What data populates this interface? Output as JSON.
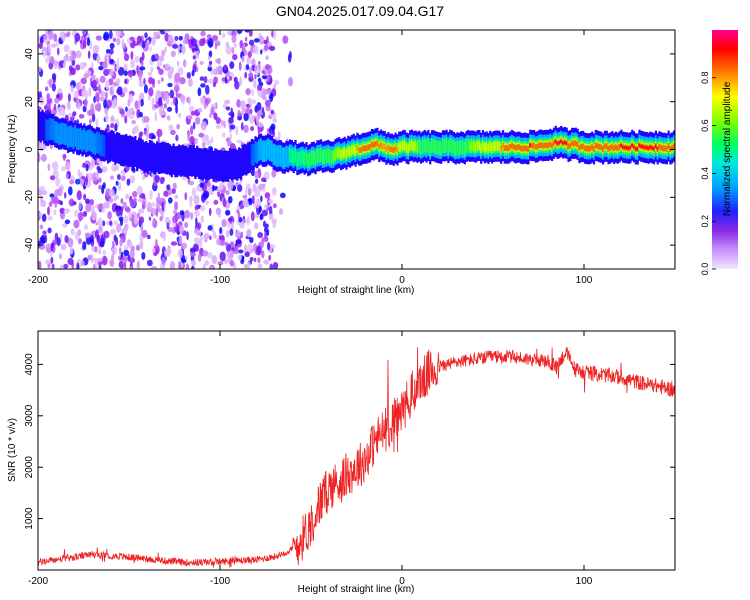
{
  "page": {
    "title": "GN04.2025.017.09.04.G17"
  },
  "chart_data": [
    {
      "type": "heatmap",
      "title": "GN04.2025.017.09.04.G17",
      "xlabel": "Height of straight line (km)",
      "ylabel": "Frequency (Hz)",
      "xlim": [
        -200,
        150
      ],
      "ylim": [
        -50,
        50
      ],
      "x_ticks": [
        -200,
        -100,
        0,
        100
      ],
      "y_ticks": [
        -40,
        -20,
        0,
        20,
        40
      ],
      "grid": false,
      "colorbar": {
        "label": "Normalized spectral amplitude",
        "range": [
          0,
          1
        ],
        "ticks": [
          0.0,
          0.2,
          0.4,
          0.6,
          0.8
        ],
        "tick_labels": [
          "0.0",
          "0.2",
          "0.4",
          "0.6",
          "0.8"
        ],
        "colormap": [
          "#f2e6ff",
          "#a020f0",
          "#0000ff",
          "#00d4ff",
          "#00ff80",
          "#66ff00",
          "#ffff00",
          "#ff8000",
          "#ff0000",
          "#ff0080"
        ]
      },
      "noise_region_x": [
        -200,
        -60
      ],
      "ridge": {
        "x": [
          -200,
          -190,
          -180,
          -170,
          -160,
          -150,
          -140,
          -130,
          -120,
          -110,
          -100,
          -90,
          -80,
          -75,
          -70,
          -65,
          -60,
          -55,
          -50,
          -45,
          -40,
          -35,
          -30,
          -25,
          -20,
          -15,
          -10,
          -5,
          0,
          10,
          20,
          30,
          40,
          50,
          60,
          70,
          80,
          85,
          90,
          95,
          100,
          110,
          120,
          130,
          140,
          150
        ],
        "frequency": [
          10,
          7,
          5,
          3,
          1,
          -1,
          -3,
          -4,
          -5,
          -6,
          -7,
          -6,
          -1,
          0,
          -2,
          -3,
          -3,
          -4,
          -4,
          -3,
          -3,
          -2,
          -1,
          0,
          1,
          2,
          1,
          0,
          1,
          1,
          1,
          1,
          1,
          1,
          1,
          1,
          2,
          3,
          2,
          2,
          1,
          1,
          1,
          1,
          1,
          1
        ],
        "amplitude": [
          0.25,
          0.3,
          0.3,
          0.3,
          0.25,
          0.25,
          0.25,
          0.25,
          0.2,
          0.2,
          0.2,
          0.2,
          0.3,
          0.35,
          0.35,
          0.4,
          0.45,
          0.45,
          0.5,
          0.5,
          0.55,
          0.6,
          0.7,
          0.75,
          0.85,
          0.8,
          0.75,
          0.8,
          0.7,
          0.55,
          0.55,
          0.5,
          0.6,
          0.7,
          0.85,
          0.9,
          0.8,
          0.95,
          0.9,
          0.85,
          0.8,
          0.85,
          0.9,
          0.9,
          0.9,
          0.85
        ]
      }
    },
    {
      "type": "line",
      "xlabel": "Height of straight line (km)",
      "ylabel": "SNR (10 * v/v)",
      "xlim": [
        -200,
        150
      ],
      "ylim": [
        0,
        4650
      ],
      "x_ticks": [
        -200,
        -100,
        0,
        100
      ],
      "y_ticks": [
        1000,
        2000,
        3000,
        4000
      ],
      "grid": false,
      "color": "#ee2222",
      "series": [
        {
          "x": [
            -200,
            -190,
            -180,
            -170,
            -160,
            -150,
            -140,
            -130,
            -120,
            -110,
            -100,
            -90,
            -80,
            -70,
            -60,
            -55,
            -50,
            -45,
            -40,
            -35,
            -30,
            -25,
            -20,
            -18,
            -15,
            -10,
            -5,
            0,
            5,
            10,
            15,
            20,
            30,
            40,
            50,
            60,
            70,
            80,
            85,
            90,
            95,
            100,
            110,
            120,
            130,
            140,
            150
          ],
          "y": [
            150,
            200,
            250,
            300,
            280,
            250,
            220,
            180,
            150,
            150,
            160,
            180,
            200,
            260,
            400,
            600,
            900,
            1300,
            1600,
            1700,
            1850,
            2000,
            2150,
            2300,
            2500,
            2700,
            2900,
            3100,
            3400,
            3650,
            3850,
            3950,
            4050,
            4100,
            4150,
            4150,
            4100,
            4050,
            3950,
            4250,
            3900,
            3850,
            3800,
            3750,
            3650,
            3580,
            3500
          ]
        }
      ]
    }
  ]
}
